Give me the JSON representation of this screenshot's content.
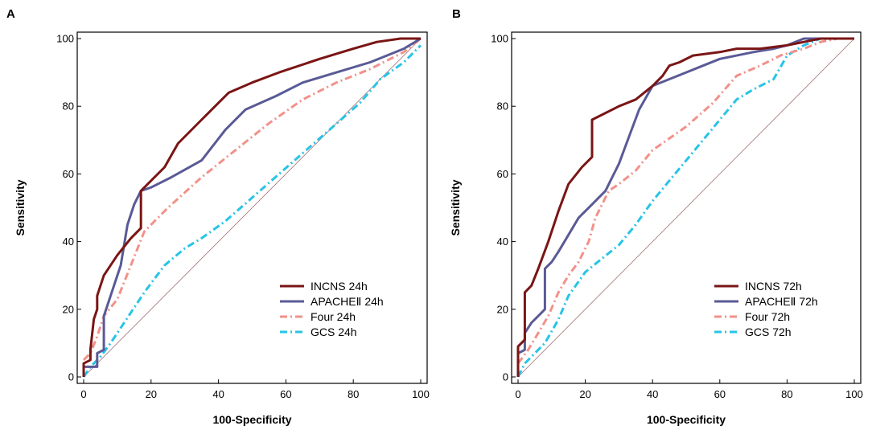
{
  "chart_data": [
    {
      "panel_label": "A",
      "type": "line",
      "xlabel": "100-Specificity",
      "ylabel": "Sensitivity",
      "xlim": [
        0,
        100
      ],
      "ylim": [
        0,
        100
      ],
      "xticks": [
        0,
        20,
        40,
        60,
        80,
        100
      ],
      "yticks": [
        0,
        20,
        40,
        60,
        80,
        100
      ],
      "legend_position": "bottom-right",
      "reference_line": {
        "x": [
          0,
          100
        ],
        "y": [
          0,
          100
        ],
        "color": "#a07070"
      },
      "series": [
        {
          "name": "INCNS 24h",
          "color": "#7a1515",
          "dash": "solid",
          "x": [
            0,
            0,
            2,
            2,
            3,
            4,
            4,
            6,
            10,
            14,
            17,
            17,
            20,
            24,
            28,
            35,
            43,
            50,
            58,
            70,
            80,
            87,
            94,
            100
          ],
          "y": [
            0,
            4,
            5,
            8,
            17,
            20,
            24,
            30,
            36,
            41,
            44,
            55,
            58,
            62,
            69,
            76,
            84,
            87,
            90,
            94,
            97,
            99,
            100,
            100
          ]
        },
        {
          "name": "APACHEⅡ 24h",
          "color": "#5a5a96",
          "dash": "solid",
          "x": [
            0,
            4,
            4,
            6,
            6,
            7,
            9,
            11,
            13,
            15,
            17,
            20,
            26,
            35,
            42,
            48,
            57,
            65,
            75,
            85,
            95,
            100
          ],
          "y": [
            3,
            3,
            7,
            8,
            18,
            21,
            27,
            33,
            45,
            51,
            55,
            56,
            59,
            64,
            73,
            79,
            83,
            87,
            90,
            93,
            97,
            100
          ],
          "_note": "stepwise ROC curve"
        },
        {
          "name": "Four 24h",
          "color": "#f2918a",
          "dash": "dashdot",
          "x": [
            0,
            2,
            4,
            6,
            10,
            14,
            18,
            25,
            35,
            45,
            55,
            65,
            75,
            85,
            95,
            100
          ],
          "y": [
            5,
            7,
            12,
            18,
            23,
            33,
            43,
            50,
            59,
            67,
            75,
            82,
            87,
            91,
            96,
            100
          ]
        },
        {
          "name": "GCS 24h",
          "color": "#27c4e6",
          "dash": "dashdot",
          "x": [
            0,
            2,
            5,
            8,
            12,
            18,
            24,
            30,
            35,
            42,
            50,
            58,
            66,
            74,
            82,
            88,
            95,
            100
          ],
          "y": [
            0,
            3,
            6,
            10,
            16,
            25,
            33,
            38,
            41,
            46,
            53,
            60,
            67,
            74,
            81,
            88,
            93,
            98
          ]
        }
      ]
    },
    {
      "panel_label": "B",
      "type": "line",
      "xlabel": "100-Specificity",
      "ylabel": "Sensitivity",
      "xlim": [
        0,
        100
      ],
      "ylim": [
        0,
        100
      ],
      "xticks": [
        0,
        20,
        40,
        60,
        80,
        100
      ],
      "yticks": [
        0,
        20,
        40,
        60,
        80,
        100
      ],
      "legend_position": "bottom-right",
      "reference_line": {
        "x": [
          0,
          100
        ],
        "y": [
          0,
          100
        ],
        "color": "#a07070"
      },
      "series": [
        {
          "name": "INCNS 72h",
          "color": "#7a1515",
          "dash": "solid",
          "x": [
            0,
            0,
            2,
            2,
            4,
            6,
            9,
            12,
            15,
            19,
            22,
            22,
            30,
            35,
            40,
            43,
            45,
            48,
            52,
            60,
            65,
            72,
            80,
            85,
            90,
            95,
            100
          ],
          "y": [
            0,
            9,
            11,
            25,
            27,
            32,
            40,
            49,
            57,
            62,
            65,
            76,
            80,
            82,
            86,
            89,
            92,
            93,
            95,
            96,
            97,
            97,
            98,
            99,
            100,
            100,
            100
          ]
        },
        {
          "name": "APACHEⅡ 72h",
          "color": "#5a5a96",
          "dash": "solid",
          "x": [
            0,
            0,
            2,
            2,
            4,
            6,
            8,
            8,
            10,
            12,
            15,
            18,
            22,
            26,
            30,
            33,
            36,
            40,
            45,
            50,
            55,
            60,
            70,
            76,
            80,
            85,
            90,
            95,
            100
          ],
          "y": [
            0,
            7,
            8,
            13,
            16,
            18,
            20,
            32,
            34,
            37,
            42,
            47,
            51,
            55,
            63,
            71,
            79,
            86,
            88,
            90,
            92,
            94,
            96,
            97,
            98,
            100,
            100,
            100,
            100
          ]
        },
        {
          "name": "Four 72h",
          "color": "#f2918a",
          "dash": "dashdot",
          "x": [
            0,
            3,
            6,
            9,
            12,
            15,
            18,
            21,
            23,
            27,
            30,
            35,
            40,
            50,
            58,
            65,
            72,
            78,
            85,
            90,
            95,
            100
          ],
          "y": [
            4,
            8,
            13,
            18,
            25,
            30,
            34,
            40,
            47,
            55,
            57,
            61,
            67,
            74,
            81,
            89,
            92,
            95,
            97,
            99,
            100,
            100
          ]
        },
        {
          "name": "GCS 72h",
          "color": "#27c4e6",
          "dash": "dashdot",
          "x": [
            0,
            2,
            5,
            8,
            12,
            15,
            20,
            25,
            30,
            35,
            40,
            45,
            50,
            55,
            60,
            65,
            70,
            76,
            80,
            85,
            90,
            95,
            100
          ],
          "y": [
            0,
            4,
            7,
            10,
            17,
            24,
            31,
            35,
            39,
            45,
            52,
            58,
            64,
            70,
            76,
            82,
            85,
            88,
            95,
            98,
            100,
            100,
            100
          ]
        }
      ]
    }
  ]
}
